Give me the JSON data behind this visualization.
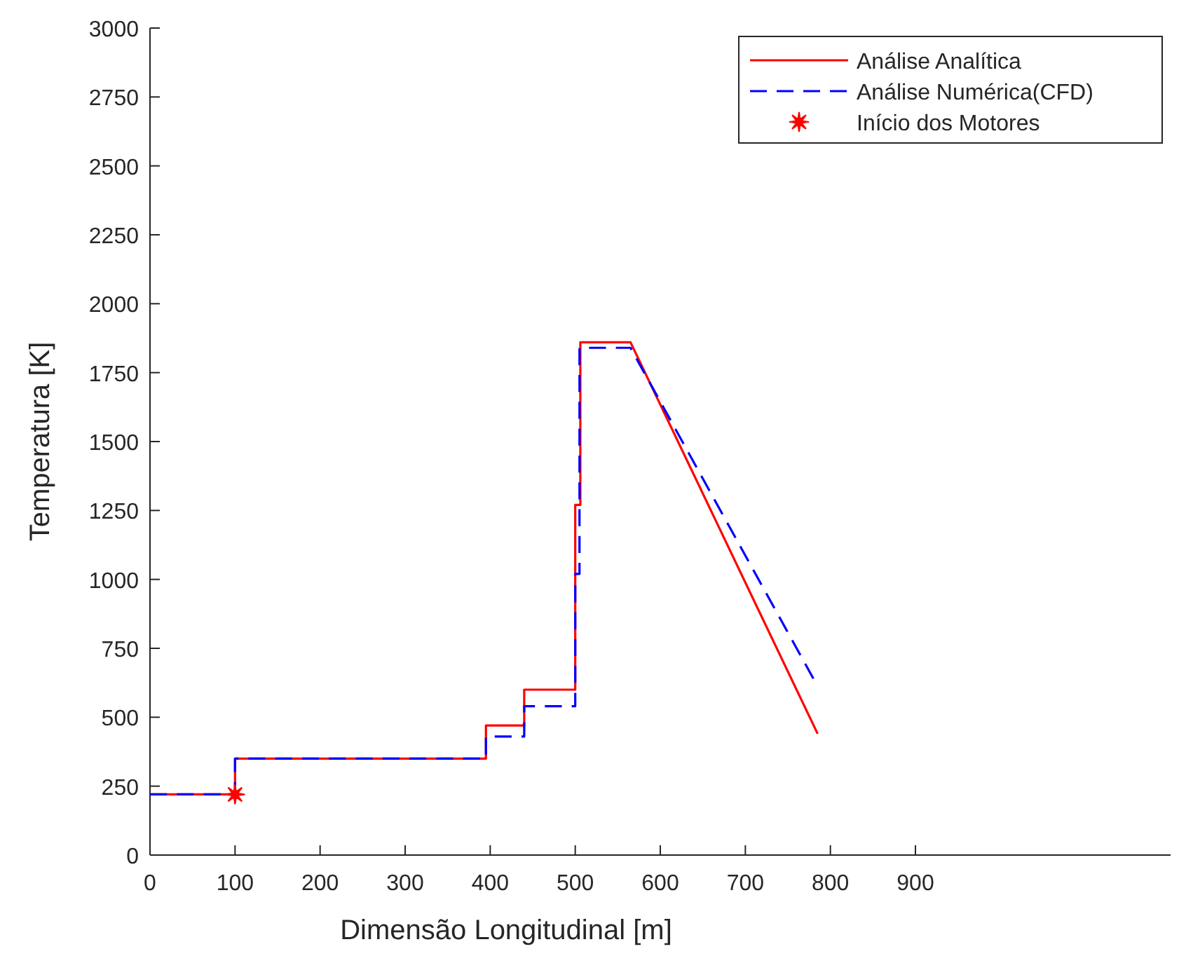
{
  "chart_data": {
    "type": "line",
    "xlabel": "Dimensão Longitudinal [m]",
    "ylabel": "Temperatura [K]",
    "xlim": [
      0,
      1200
    ],
    "xticks": [
      0,
      100,
      200,
      300,
      400,
      500,
      600,
      700,
      800,
      900
    ],
    "ylim": [
      0,
      3000
    ],
    "yticks": [
      0,
      250,
      500,
      750,
      1000,
      1250,
      1500,
      1750,
      2000,
      2250,
      2500,
      2750,
      3000
    ],
    "grid": false,
    "legend": "top right",
    "series": [
      {
        "name": "Análise Analítica",
        "color": "#ff0000",
        "line_style": "solid",
        "x": [
          0,
          100,
          100,
          395,
          395,
          440,
          440,
          500,
          500,
          506,
          506,
          565,
          785
        ],
        "values": [
          220,
          220,
          350,
          350,
          470,
          470,
          600,
          600,
          1270,
          1270,
          1860,
          1860,
          440
        ]
      },
      {
        "name": "Análise Numérica(CFD)",
        "color": "#0000ff",
        "line_style": "dashed",
        "x": [
          0,
          100,
          100,
          395,
          395,
          440,
          440,
          500,
          500,
          505,
          505,
          565,
          780
        ],
        "values": [
          220,
          220,
          350,
          350,
          430,
          430,
          540,
          540,
          1020,
          1020,
          1840,
          1840,
          640
        ]
      },
      {
        "name": "Início dos Motores",
        "type": "scatter",
        "color": "#ff0000",
        "marker": "star",
        "x": [
          100
        ],
        "values": [
          220
        ]
      }
    ]
  }
}
